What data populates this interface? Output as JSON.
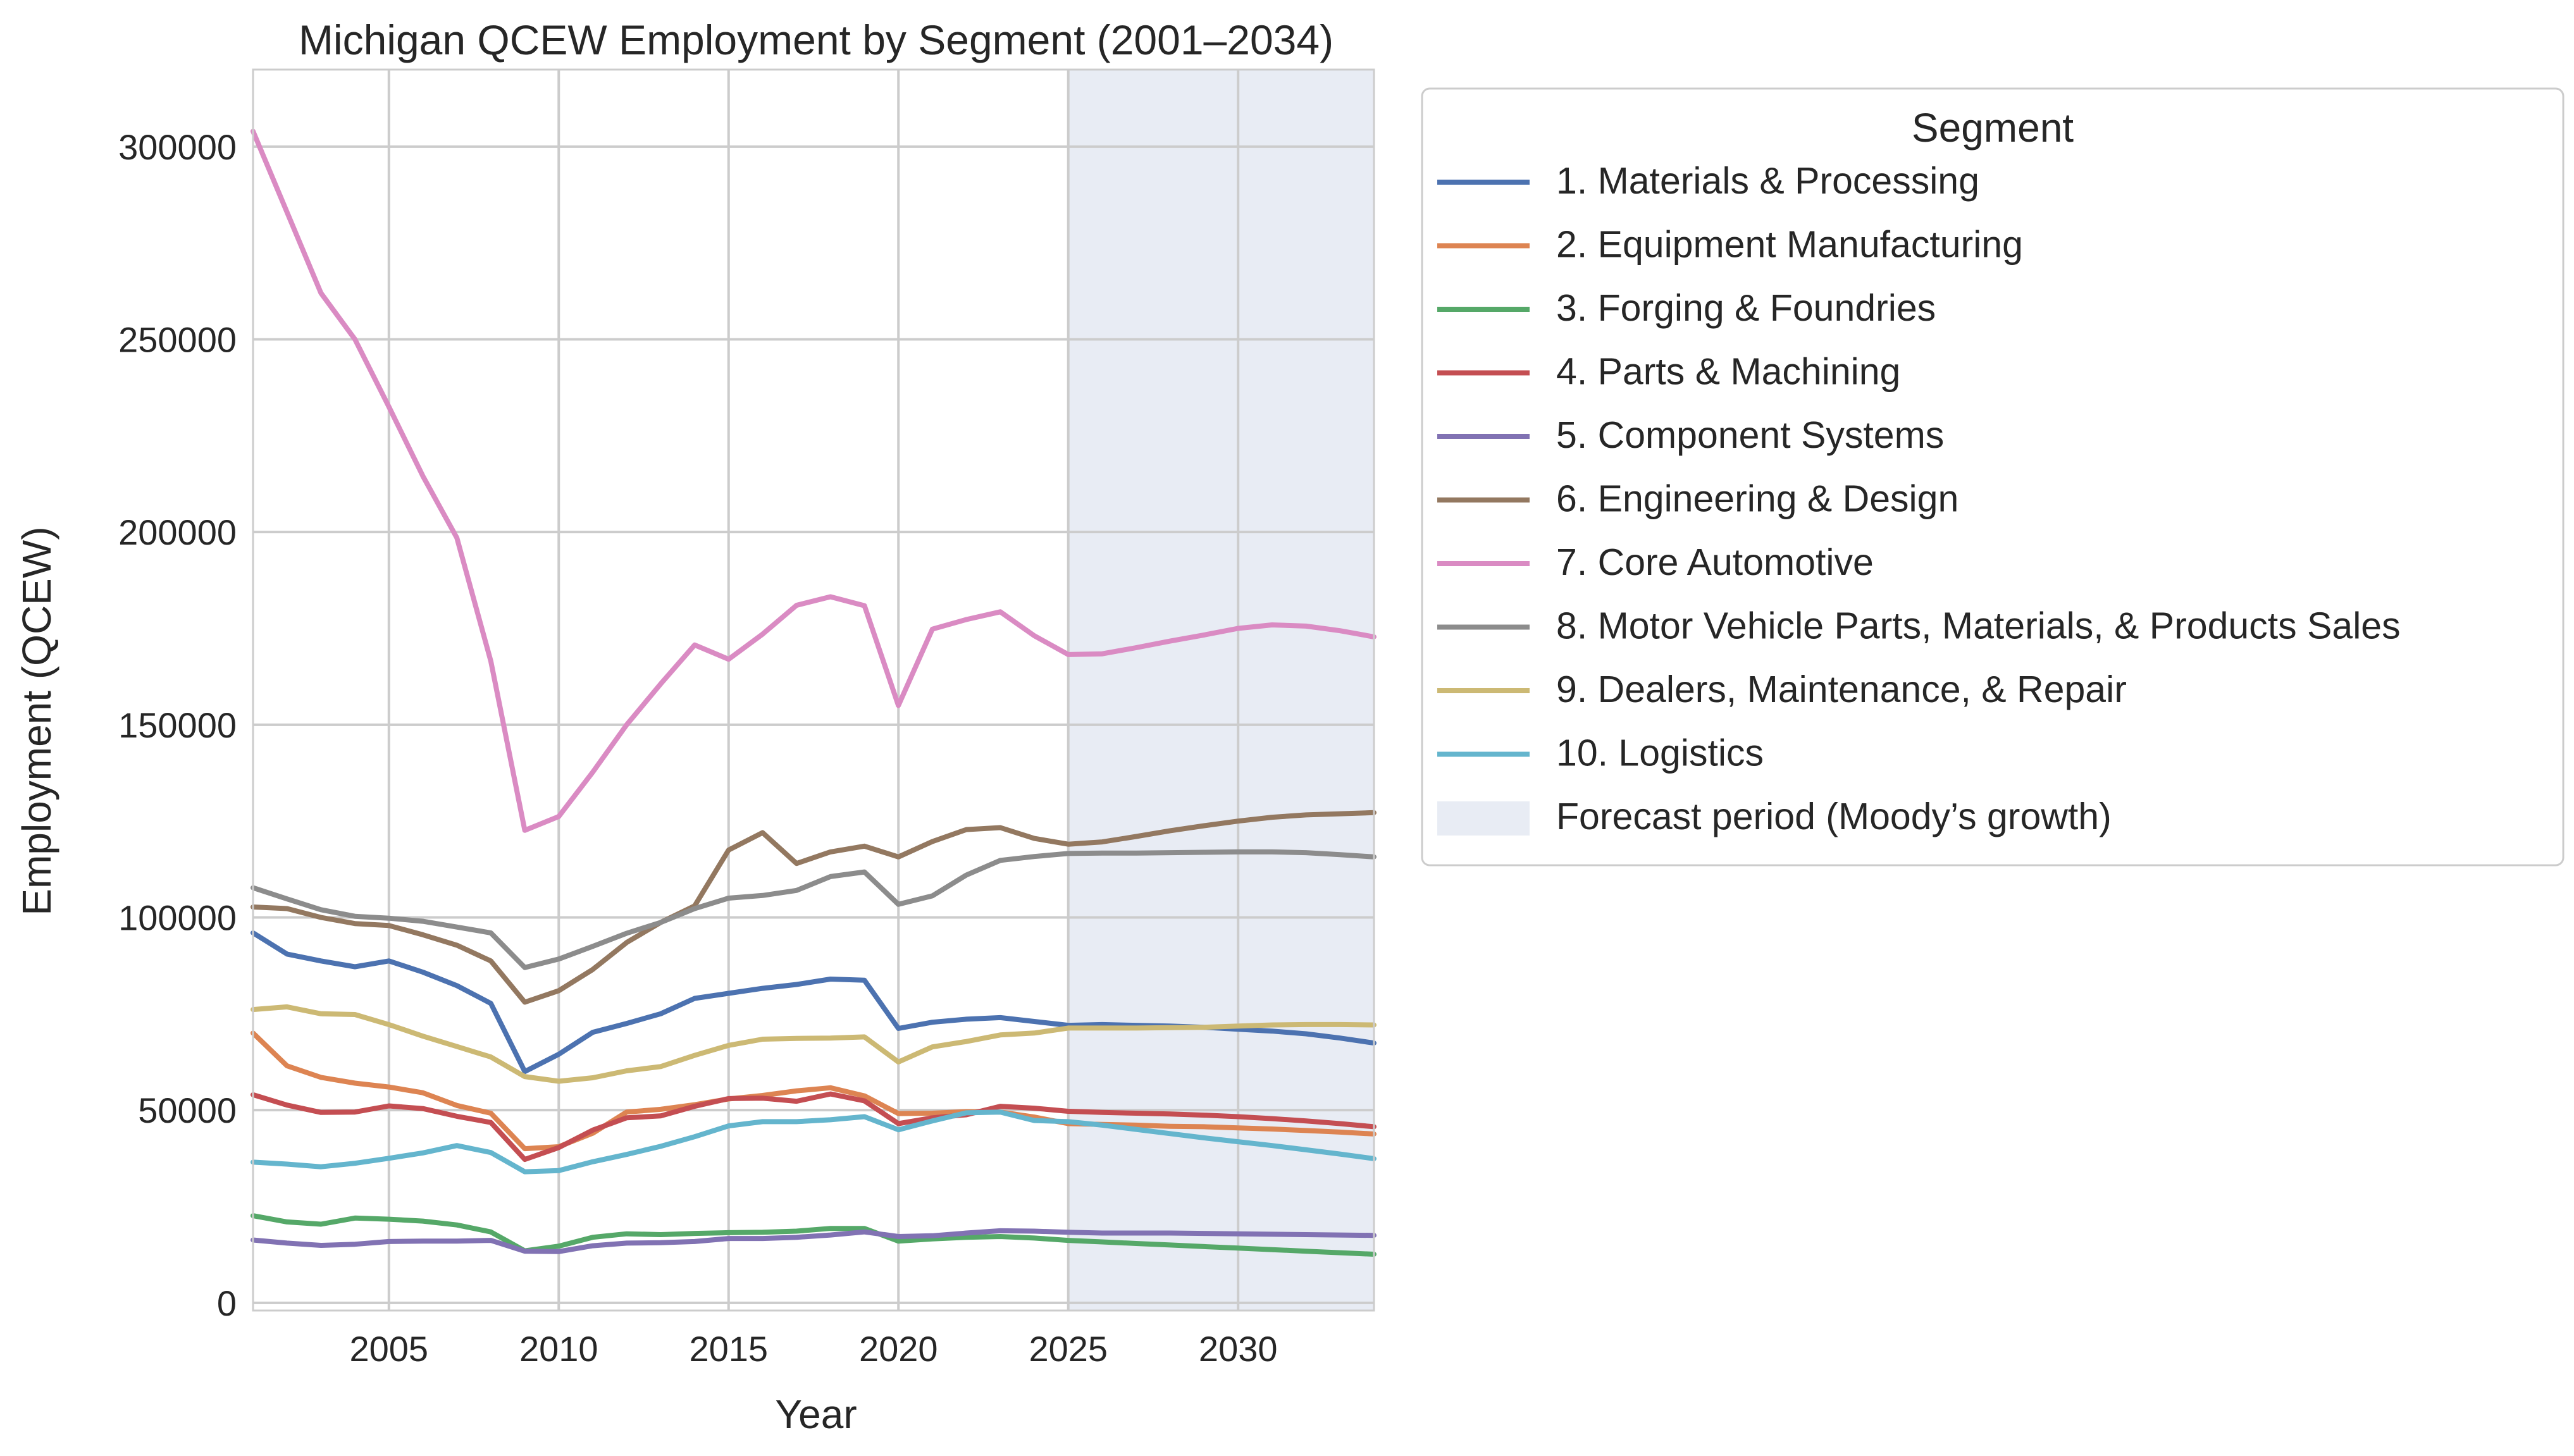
{
  "chart_data": {
    "type": "line",
    "title": "Michigan QCEW Employment by Segment (2001–2034)",
    "xlabel": "Year",
    "ylabel": "Employment (QCEW)",
    "xlim": [
      2001,
      2034
    ],
    "ylim": [
      -2000,
      320000
    ],
    "xticks": [
      2005,
      2010,
      2015,
      2020,
      2025,
      2030
    ],
    "yticks": [
      0,
      50000,
      100000,
      150000,
      200000,
      250000,
      300000
    ],
    "grid": true,
    "legend_title": "Segment",
    "legend_position": "outside-right",
    "forecast": {
      "start": 2025,
      "end": 2034,
      "label": "Forecast period (Moody’s growth)",
      "color": "#e8ecf4"
    },
    "x": [
      2001,
      2002,
      2003,
      2004,
      2005,
      2006,
      2007,
      2008,
      2009,
      2010,
      2011,
      2012,
      2013,
      2014,
      2015,
      2016,
      2017,
      2018,
      2019,
      2020,
      2021,
      2022,
      2023,
      2024,
      2025,
      2026,
      2027,
      2028,
      2029,
      2030,
      2031,
      2032,
      2033,
      2034
    ],
    "series": [
      {
        "name": "1. Materials & Processing",
        "color": "#4c72b0",
        "values": [
          96000,
          90500,
          88700,
          87200,
          88700,
          85800,
          82300,
          77700,
          60000,
          64500,
          70200,
          72500,
          75000,
          79000,
          80300,
          81600,
          82600,
          84000,
          83700,
          71200,
          72800,
          73600,
          74000,
          73000,
          72000,
          72200,
          72000,
          71800,
          71500,
          71000,
          70500,
          69800,
          68700,
          67400
        ]
      },
      {
        "name": "2. Equipment Manufacturing",
        "color": "#dd8452",
        "values": [
          70000,
          61500,
          58500,
          57000,
          56000,
          54500,
          51200,
          49200,
          40000,
          40500,
          44000,
          49500,
          50200,
          51400,
          52900,
          53800,
          55000,
          55800,
          53700,
          49100,
          49200,
          49600,
          49500,
          48200,
          46500,
          46300,
          46100,
          45800,
          45700,
          45400,
          45100,
          44700,
          44300,
          43800
        ]
      },
      {
        "name": "3. Forging & Foundries",
        "color": "#55a868",
        "values": [
          22600,
          21000,
          20400,
          22000,
          21700,
          21200,
          20200,
          18400,
          13500,
          14700,
          17000,
          17900,
          17700,
          18000,
          18200,
          18300,
          18600,
          19300,
          19300,
          16000,
          16600,
          17000,
          17200,
          16800,
          16200,
          15800,
          15400,
          15000,
          14600,
          14200,
          13800,
          13400,
          13000,
          12600
        ]
      },
      {
        "name": "4. Parts & Machining",
        "color": "#c44e52",
        "values": [
          54000,
          51300,
          49400,
          49500,
          51100,
          50400,
          48400,
          46800,
          37200,
          40300,
          44800,
          48000,
          48500,
          51000,
          53000,
          53100,
          52300,
          54200,
          52400,
          46500,
          48000,
          48800,
          51000,
          50500,
          49700,
          49400,
          49200,
          49000,
          48700,
          48300,
          47800,
          47200,
          46500,
          45700
        ]
      },
      {
        "name": "5. Component Systems",
        "color": "#8172b3",
        "values": [
          16300,
          15500,
          14900,
          15200,
          15900,
          16000,
          16000,
          16200,
          13400,
          13300,
          14800,
          15500,
          15600,
          15900,
          16700,
          16700,
          17000,
          17600,
          18400,
          17200,
          17400,
          18100,
          18700,
          18600,
          18300,
          18100,
          18100,
          18100,
          18000,
          17900,
          17800,
          17700,
          17600,
          17500
        ]
      },
      {
        "name": "6. Engineering & Design",
        "color": "#937860",
        "values": [
          102700,
          102300,
          100000,
          98400,
          97900,
          95500,
          92800,
          88700,
          78000,
          81000,
          86500,
          93500,
          98700,
          103000,
          117500,
          122000,
          114000,
          117000,
          118500,
          115700,
          119700,
          122800,
          123300,
          120500,
          119000,
          119600,
          121000,
          122500,
          123800,
          125000,
          126000,
          126600,
          126900,
          127200
        ]
      },
      {
        "name": "7. Core Automotive",
        "color": "#da8bc3",
        "values": [
          304000,
          283000,
          262000,
          250000,
          232500,
          214500,
          198500,
          166500,
          122600,
          126200,
          137700,
          150000,
          160600,
          170700,
          167000,
          173500,
          181000,
          183200,
          180900,
          155000,
          174800,
          177300,
          179300,
          173100,
          168200,
          168400,
          170000,
          171700,
          173300,
          175000,
          175900,
          175600,
          174400,
          172800
        ]
      },
      {
        "name": "8. Motor Vehicle Parts, Materials, & Products Sales",
        "color": "#8c8c8c",
        "values": [
          107700,
          104800,
          102000,
          100300,
          99800,
          99000,
          97500,
          96000,
          87000,
          89200,
          92500,
          95900,
          98700,
          102300,
          105000,
          105700,
          107000,
          110600,
          111800,
          103400,
          105600,
          111000,
          114800,
          115800,
          116600,
          116700,
          116700,
          116800,
          116900,
          117000,
          117000,
          116800,
          116300,
          115700
        ]
      },
      {
        "name": "9. Dealers, Maintenance, & Repair",
        "color": "#ccb974",
        "values": [
          76100,
          76800,
          75000,
          74800,
          72200,
          69200,
          66500,
          63800,
          58700,
          57500,
          58400,
          60200,
          61300,
          64200,
          66800,
          68400,
          68600,
          68700,
          69000,
          62500,
          66400,
          67800,
          69500,
          70000,
          71300,
          71300,
          71300,
          71400,
          71500,
          71800,
          72100,
          72200,
          72200,
          72100
        ]
      },
      {
        "name": "10. Logistics",
        "color": "#64b5cd",
        "values": [
          36500,
          36000,
          35300,
          36200,
          37500,
          38900,
          40800,
          39000,
          34000,
          34300,
          36600,
          38500,
          40600,
          43100,
          45900,
          47000,
          47000,
          47500,
          48300,
          44900,
          47200,
          49300,
          49500,
          47300,
          47000,
          46100,
          45000,
          43900,
          42800,
          41800,
          40800,
          39700,
          38600,
          37400
        ]
      }
    ]
  }
}
